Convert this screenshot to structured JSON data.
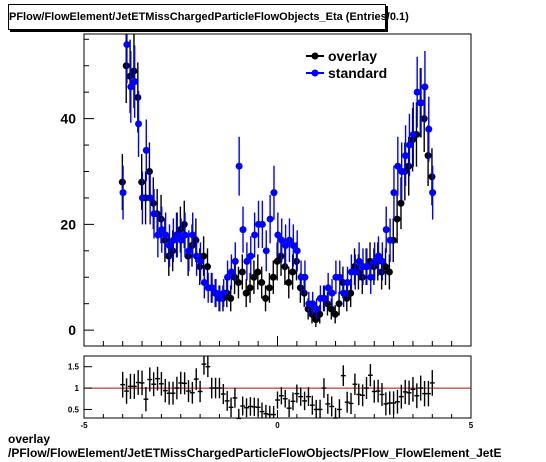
{
  "title": "PFlow/FlowElement/JetETMissChargedParticleFlowObjects_Eta (Entries/0.1)",
  "footer": {
    "line1": "overlay",
    "line2": "/PFlow/FlowElement/JetETMissChargedParticleFlowObjects/PFlow_FlowElement_JetE"
  },
  "colors": {
    "overlay": "#000000",
    "standard": "#0000ff",
    "ratio_line": "#cc0000"
  },
  "chart_data": [
    {
      "type": "scatter",
      "xlim": [
        -5,
        5
      ],
      "ylim": [
        -3,
        56
      ],
      "yticks": [
        0,
        20,
        40
      ],
      "legend_position": "top-right",
      "series": [
        {
          "name": "overlay",
          "x": [
            -4.0,
            -3.9,
            -3.8,
            -3.7,
            -3.6,
            -3.5,
            -3.4,
            -3.3,
            -3.2,
            -3.1,
            -3.0,
            -2.9,
            -2.8,
            -2.7,
            -2.6,
            -2.5,
            -2.4,
            -2.3,
            -2.2,
            -2.1,
            -2.0,
            -1.9,
            -1.8,
            -1.7,
            -1.6,
            -1.5,
            -1.4,
            -1.3,
            -1.2,
            -1.1,
            -1.0,
            -0.9,
            -0.8,
            -0.7,
            -0.6,
            -0.5,
            -0.4,
            -0.3,
            -0.2,
            -0.1,
            0.0,
            0.1,
            0.2,
            0.3,
            0.4,
            0.5,
            0.6,
            0.7,
            0.8,
            0.9,
            1.0,
            1.1,
            1.2,
            1.3,
            1.4,
            1.5,
            1.6,
            1.7,
            1.8,
            1.9,
            2.0,
            2.1,
            2.2,
            2.3,
            2.4,
            2.5,
            2.6,
            2.7,
            2.8,
            2.9,
            3.0,
            3.1,
            3.2,
            3.3,
            3.4,
            3.5,
            3.6,
            3.7,
            3.8,
            3.9,
            4.0
          ],
          "y": [
            28,
            50,
            48,
            49,
            44,
            28,
            25,
            30,
            24,
            22,
            21,
            17,
            14,
            15,
            18,
            19,
            20,
            14,
            16,
            17,
            12,
            14,
            12,
            8,
            7,
            6,
            6,
            7,
            6,
            10,
            9,
            11,
            7,
            8,
            10,
            11,
            9,
            6,
            8,
            10,
            13,
            14,
            12,
            9,
            11,
            13,
            8,
            7,
            4,
            3,
            2,
            3,
            6,
            5,
            4,
            3,
            5,
            9,
            6,
            7,
            12,
            11,
            10,
            12,
            13,
            12,
            13,
            11,
            12,
            11,
            17,
            21,
            24,
            30,
            31,
            36,
            37,
            43,
            40,
            33,
            29
          ]
        },
        {
          "name": "standard",
          "x": [
            -4.0,
            -3.9,
            -3.8,
            -3.7,
            -3.6,
            -3.5,
            -3.4,
            -3.3,
            -3.2,
            -3.1,
            -3.0,
            -2.9,
            -2.8,
            -2.7,
            -2.6,
            -2.5,
            -2.4,
            -2.3,
            -2.2,
            -2.1,
            -2.0,
            -1.9,
            -1.8,
            -1.7,
            -1.6,
            -1.5,
            -1.4,
            -1.3,
            -1.2,
            -1.1,
            -1.0,
            -0.9,
            -0.8,
            -0.7,
            -0.6,
            -0.5,
            -0.4,
            -0.3,
            -0.2,
            -0.1,
            0.0,
            0.1,
            0.2,
            0.3,
            0.4,
            0.5,
            0.6,
            0.7,
            0.8,
            0.9,
            1.0,
            1.1,
            1.2,
            1.3,
            1.4,
            1.5,
            1.6,
            1.7,
            1.8,
            1.9,
            2.0,
            2.1,
            2.2,
            2.3,
            2.4,
            2.5,
            2.6,
            2.7,
            2.8,
            2.9,
            3.0,
            3.1,
            3.2,
            3.3,
            3.4,
            3.5,
            3.6,
            3.7,
            3.8,
            3.9,
            4.0
          ],
          "y": [
            26,
            54,
            46,
            47,
            39,
            25,
            34,
            25,
            22,
            18,
            19,
            18,
            16,
            17,
            18,
            17,
            18,
            15,
            18,
            14,
            13,
            9,
            8,
            8,
            7,
            6,
            7,
            10,
            11,
            13,
            31,
            19,
            13,
            14,
            18,
            20,
            20,
            15,
            21,
            26,
            18,
            17,
            16,
            17,
            16,
            15,
            10,
            10,
            5,
            5,
            4,
            6,
            6,
            8,
            7,
            10,
            10,
            7,
            9,
            11,
            11,
            13,
            12,
            12,
            10,
            13,
            14,
            13,
            19,
            17,
            26,
            31,
            30,
            33,
            35,
            37,
            45,
            43,
            46,
            38,
            26
          ]
        }
      ]
    },
    {
      "type": "scatter",
      "xlim": [
        -5,
        5
      ],
      "ylim": [
        0.3,
        1.75
      ],
      "xticks": [
        -5,
        0,
        5
      ],
      "yticks": [
        0.5,
        1,
        1.5
      ],
      "reference_line": 1,
      "series": [
        {
          "x": [
            -4.0,
            -3.9,
            -3.8,
            -3.7,
            -3.6,
            -3.5,
            -3.4,
            -3.3,
            -3.2,
            -3.1,
            -3.0,
            -2.9,
            -2.8,
            -2.7,
            -2.6,
            -2.5,
            -2.4,
            -2.3,
            -2.2,
            -2.1,
            -2.0,
            -1.9,
            -1.8,
            -1.7,
            -1.6,
            -1.5,
            -1.4,
            -1.3,
            -1.2,
            -1.1,
            -1.0,
            -0.9,
            -0.8,
            -0.7,
            -0.6,
            -0.5,
            -0.4,
            -0.3,
            -0.2,
            -0.1,
            0.0,
            0.1,
            0.2,
            0.3,
            0.4,
            0.5,
            0.6,
            0.7,
            0.8,
            0.9,
            1.0,
            1.1,
            1.2,
            1.3,
            1.4,
            1.5,
            1.6,
            1.7,
            1.8,
            1.9,
            2.0,
            2.1,
            2.2,
            2.3,
            2.4,
            2.5,
            2.6,
            2.7,
            2.8,
            2.9,
            3.0,
            3.1,
            3.2,
            3.3,
            3.4,
            3.5,
            3.6,
            3.7,
            3.8,
            3.9,
            4.0
          ],
          "y": [
            1.08,
            0.93,
            1.04,
            1.04,
            1.13,
            1.12,
            0.74,
            1.2,
            1.09,
            1.22,
            1.1,
            0.94,
            0.88,
            0.88,
            1.0,
            1.12,
            1.11,
            0.93,
            0.89,
            1.21,
            0.92,
            1.56,
            1.5,
            1.0,
            1.0,
            1.0,
            0.86,
            0.7,
            0.55,
            0.77,
            0.29,
            0.58,
            0.54,
            0.57,
            0.56,
            0.55,
            0.45,
            0.4,
            0.38,
            0.38,
            0.72,
            0.82,
            0.75,
            0.53,
            0.69,
            0.87,
            0.8,
            0.7,
            0.8,
            0.6,
            0.5,
            0.5,
            1.0,
            0.63,
            0.57,
            0.3,
            0.5,
            1.29,
            0.67,
            0.64,
            1.09,
            0.85,
            0.83,
            1.0,
            1.3,
            0.92,
            0.93,
            0.85,
            0.63,
            0.65,
            0.65,
            0.68,
            0.8,
            0.91,
            0.89,
            0.97,
            0.82,
            1.0,
            0.87,
            0.87,
            1.12
          ]
        }
      ]
    }
  ]
}
